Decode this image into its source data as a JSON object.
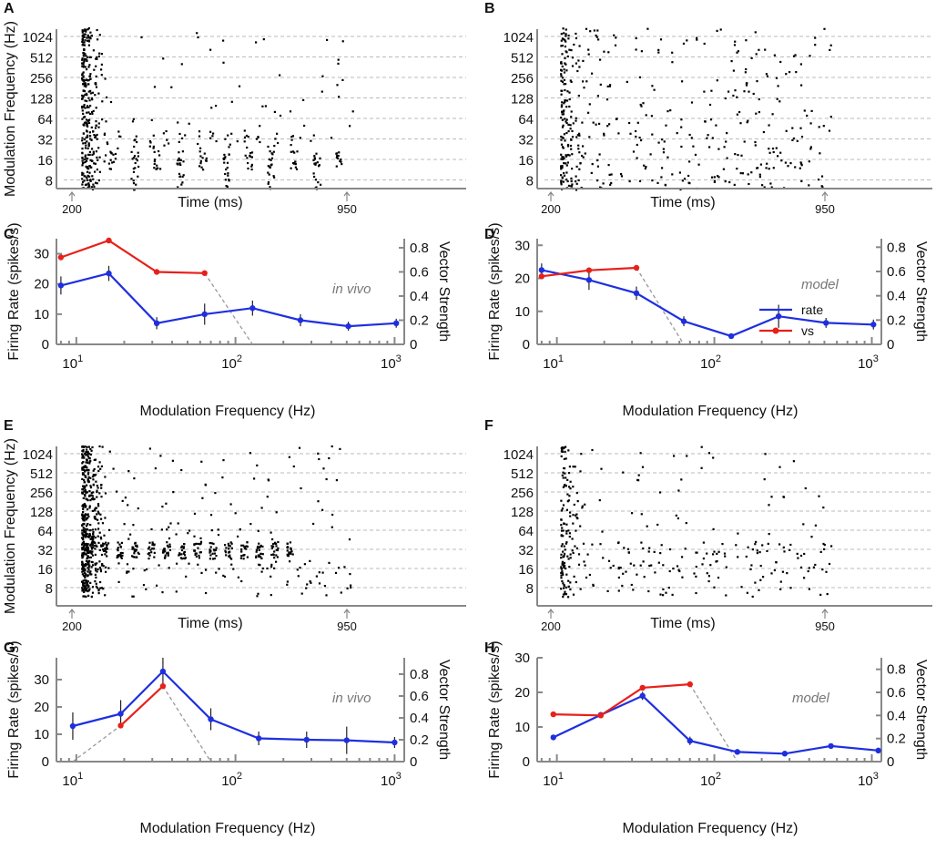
{
  "chart_data": [
    {
      "panel": "A",
      "type": "raster",
      "ylabel": "Modulation Frequency (Hz)",
      "xlabel": "Time (ms)",
      "y_ticks": [
        "1024",
        "512",
        "256",
        "128",
        "64",
        "32",
        "16",
        "8"
      ],
      "x_markers": [
        "200",
        "950"
      ],
      "seed": 11,
      "rows": [
        {
          "freq": "1024",
          "onset": 45,
          "late": 8,
          "periodic": 0
        },
        {
          "freq": "512",
          "onset": 40,
          "late": 6,
          "periodic": 0
        },
        {
          "freq": "256",
          "onset": 38,
          "late": 7,
          "periodic": 0
        },
        {
          "freq": "128",
          "onset": 35,
          "late": 10,
          "periodic": 0
        },
        {
          "freq": "64",
          "onset": 35,
          "late": 12,
          "periodic": 0
        },
        {
          "freq": "32",
          "onset": 30,
          "late": 14,
          "periodic": 4
        },
        {
          "freq": "16",
          "onset": 30,
          "late": 0,
          "periodic": 12
        },
        {
          "freq": "8",
          "onset": 30,
          "late": 0,
          "periodic": 8
        }
      ]
    },
    {
      "panel": "B",
      "type": "raster",
      "xlabel": "Time (ms)",
      "y_ticks": [
        "1024",
        "512",
        "256",
        "128",
        "64",
        "32",
        "16",
        "8"
      ],
      "x_markers": [
        "200",
        "950"
      ],
      "seed": 23,
      "rows": [
        {
          "freq": "1024",
          "onset": 20,
          "late": 28,
          "periodic": 0
        },
        {
          "freq": "512",
          "onset": 18,
          "late": 26,
          "periodic": 0
        },
        {
          "freq": "256",
          "onset": 18,
          "late": 26,
          "periodic": 0
        },
        {
          "freq": "128",
          "onset": 18,
          "late": 22,
          "periodic": 0
        },
        {
          "freq": "64",
          "onset": 22,
          "late": 40,
          "periodic": 0
        },
        {
          "freq": "32",
          "onset": 24,
          "late": 45,
          "periodic": 0
        },
        {
          "freq": "16",
          "onset": 25,
          "late": 50,
          "periodic": 0
        },
        {
          "freq": "8",
          "onset": 28,
          "late": 55,
          "periodic": 0
        }
      ]
    },
    {
      "panel": "C",
      "type": "line",
      "xlabel": "Modulation Frequency (Hz)",
      "ylabel": "Firing Rate (spikes/s)",
      "y2label": "Vector Strength",
      "note": "in vivo",
      "xscale": "log",
      "xlim": [
        7.5,
        1150
      ],
      "ylim": [
        0,
        35
      ],
      "y2lim": [
        0,
        0.875
      ],
      "xticks": [
        {
          "v": 10,
          "exp": "1"
        },
        {
          "v": 100,
          "exp": "2"
        },
        {
          "v": 1000,
          "exp": "3"
        }
      ],
      "yticks": [
        0,
        10,
        20,
        30
      ],
      "y2ticks": [
        "0",
        "0.2",
        "0.4",
        "0.6",
        "0.8"
      ],
      "series": [
        {
          "name": "rate",
          "axis": "left",
          "color": "#1f2fe0",
          "x": [
            8,
            16,
            32,
            64,
            128,
            256,
            512,
            1024
          ],
          "y": [
            19.5,
            23.5,
            7,
            10,
            12,
            8,
            6,
            7
          ],
          "err": [
            3,
            2.5,
            2,
            3.5,
            2.5,
            2,
            1.5,
            1.5
          ]
        },
        {
          "name": "vs",
          "axis": "right",
          "color": "#e8201a",
          "x": [
            8,
            16,
            32,
            64
          ],
          "y": [
            0.72,
            0.86,
            0.6,
            0.59
          ]
        }
      ],
      "dashed": {
        "x": [
          64,
          128
        ],
        "y": [
          0.59,
          0
        ]
      }
    },
    {
      "panel": "D",
      "type": "line",
      "xlabel": "Modulation Frequency (Hz)",
      "ylabel": "Firing Rate (spikes/s)",
      "y2label": "Vector Strength",
      "note": "model",
      "legend": [
        "rate",
        "vs"
      ],
      "xscale": "log",
      "xlim": [
        7.5,
        1150
      ],
      "ylim": [
        0,
        32
      ],
      "y2lim": [
        0,
        0.87
      ],
      "xticks": [
        {
          "v": 10,
          "exp": "1"
        },
        {
          "v": 100,
          "exp": "2"
        },
        {
          "v": 1000,
          "exp": "3"
        }
      ],
      "yticks": [
        0,
        10,
        20,
        30
      ],
      "y2ticks": [
        "0",
        "0.2",
        "0.4",
        "0.6",
        "0.8"
      ],
      "series": [
        {
          "name": "rate",
          "axis": "left",
          "color": "#1f2fe0",
          "x": [
            8,
            16,
            32,
            64,
            128,
            256,
            512,
            1024
          ],
          "y": [
            22.5,
            19.5,
            15.5,
            7,
            2.5,
            8.5,
            6.5,
            6
          ],
          "err": [
            2,
            3,
            2,
            1.5,
            0.5,
            3.5,
            1.5,
            1.5
          ]
        },
        {
          "name": "vs",
          "axis": "right",
          "color": "#e8201a",
          "x": [
            8,
            16,
            32
          ],
          "y": [
            0.56,
            0.61,
            0.63
          ]
        }
      ],
      "dashed": {
        "x": [
          32,
          64
        ],
        "y": [
          0.63,
          0
        ]
      }
    },
    {
      "panel": "E",
      "type": "raster",
      "ylabel": "Modulation Frequency (Hz)",
      "xlabel": "Time (ms)",
      "y_ticks": [
        "1024",
        "512",
        "256",
        "128",
        "64",
        "32",
        "16",
        "8"
      ],
      "x_markers": [
        "200",
        "950"
      ],
      "seed": 37,
      "rows": [
        {
          "freq": "1024",
          "onset": 50,
          "late": 14,
          "periodic": 0
        },
        {
          "freq": "512",
          "onset": 50,
          "late": 14,
          "periodic": 0
        },
        {
          "freq": "256",
          "onset": 55,
          "late": 12,
          "periodic": 0
        },
        {
          "freq": "128",
          "onset": 55,
          "late": 12,
          "periodic": 0
        },
        {
          "freq": "64",
          "onset": 65,
          "late": 30,
          "periodic": 0
        },
        {
          "freq": "32",
          "onset": 70,
          "late": 0,
          "periodic": 20
        },
        {
          "freq": "16",
          "onset": 70,
          "late": 50,
          "periodic": 0
        },
        {
          "freq": "8",
          "onset": 65,
          "late": 28,
          "periodic": 0
        }
      ]
    },
    {
      "panel": "F",
      "type": "raster",
      "xlabel": "Time (ms)",
      "y_ticks": [
        "1024",
        "512",
        "256",
        "128",
        "64",
        "32",
        "16",
        "8"
      ],
      "x_markers": [
        "200",
        "950"
      ],
      "seed": 53,
      "rows": [
        {
          "freq": "1024",
          "onset": 14,
          "late": 10,
          "periodic": 0
        },
        {
          "freq": "512",
          "onset": 14,
          "late": 10,
          "periodic": 0
        },
        {
          "freq": "256",
          "onset": 14,
          "late": 8,
          "periodic": 0
        },
        {
          "freq": "128",
          "onset": 16,
          "late": 8,
          "periodic": 0
        },
        {
          "freq": "64",
          "onset": 20,
          "late": 10,
          "periodic": 0
        },
        {
          "freq": "32",
          "onset": 22,
          "late": 60,
          "periodic": 0
        },
        {
          "freq": "16",
          "onset": 22,
          "late": 60,
          "periodic": 0
        },
        {
          "freq": "8",
          "onset": 22,
          "late": 30,
          "periodic": 0
        }
      ]
    },
    {
      "panel": "G",
      "type": "line",
      "xlabel": "Modulation Frequency (Hz)",
      "ylabel": "Firing Rate (spikes/s)",
      "y2label": "Vector Strength",
      "note": "in vivo",
      "xscale": "log",
      "xlim": [
        7.5,
        1150
      ],
      "ylim": [
        0,
        38
      ],
      "y2lim": [
        0,
        0.95
      ],
      "xticks": [
        {
          "v": 10,
          "exp": "1"
        },
        {
          "v": 100,
          "exp": "2"
        },
        {
          "v": 1000,
          "exp": "3"
        }
      ],
      "yticks": [
        0,
        10,
        20,
        30
      ],
      "y2ticks": [
        "0",
        "0.2",
        "0.4",
        "0.6",
        "0.8"
      ],
      "series": [
        {
          "name": "rate",
          "axis": "left",
          "color": "#1f2fe0",
          "x": [
            9.5,
            19,
            35,
            70,
            140,
            280,
            500,
            1000
          ],
          "y": [
            13,
            17.5,
            33,
            15.5,
            8.5,
            8,
            7.8,
            7
          ],
          "err": [
            5,
            5,
            5,
            4,
            2.5,
            3,
            5,
            2
          ]
        },
        {
          "name": "vs",
          "axis": "right",
          "color": "#e8201a",
          "x": [
            19,
            35
          ],
          "y": [
            0.33,
            0.69
          ]
        }
      ],
      "dashed": [
        {
          "x": [
            9.5,
            19
          ],
          "y": [
            0,
            0.33
          ]
        },
        {
          "x": [
            35,
            70
          ],
          "y": [
            0.69,
            0
          ]
        }
      ]
    },
    {
      "panel": "H",
      "type": "line",
      "xlabel": "Modulation Frequency (Hz)",
      "ylabel": "Firing Rate (spikes/s)",
      "y2label": "Vector Strength",
      "note": "model",
      "xscale": "log",
      "xlim": [
        7.5,
        1150
      ],
      "ylim": [
        0,
        30
      ],
      "y2lim": [
        0,
        0.9
      ],
      "xticks": [
        {
          "v": 10,
          "exp": "1"
        },
        {
          "v": 100,
          "exp": "2"
        },
        {
          "v": 1000,
          "exp": "3"
        }
      ],
      "yticks": [
        0,
        10,
        20,
        30
      ],
      "y2ticks": [
        "0",
        "0.2",
        "0.4",
        "0.6",
        "0.8"
      ],
      "series": [
        {
          "name": "rate",
          "axis": "left",
          "color": "#1f2fe0",
          "x": [
            9.5,
            19,
            35,
            70,
            140,
            280,
            550,
            1100
          ],
          "y": [
            7,
            13.5,
            19,
            6,
            2.8,
            2.3,
            4.5,
            3.2
          ],
          "err": [
            0.6,
            0.8,
            1.2,
            1.2,
            0.4,
            0.3,
            0.4,
            0.4
          ]
        },
        {
          "name": "vs",
          "axis": "right",
          "color": "#e8201a",
          "x": [
            9.5,
            19,
            35,
            70
          ],
          "y": [
            0.41,
            0.4,
            0.64,
            0.67
          ]
        }
      ],
      "dashed": {
        "x": [
          70,
          140
        ],
        "y": [
          0.67,
          0
        ]
      }
    }
  ]
}
